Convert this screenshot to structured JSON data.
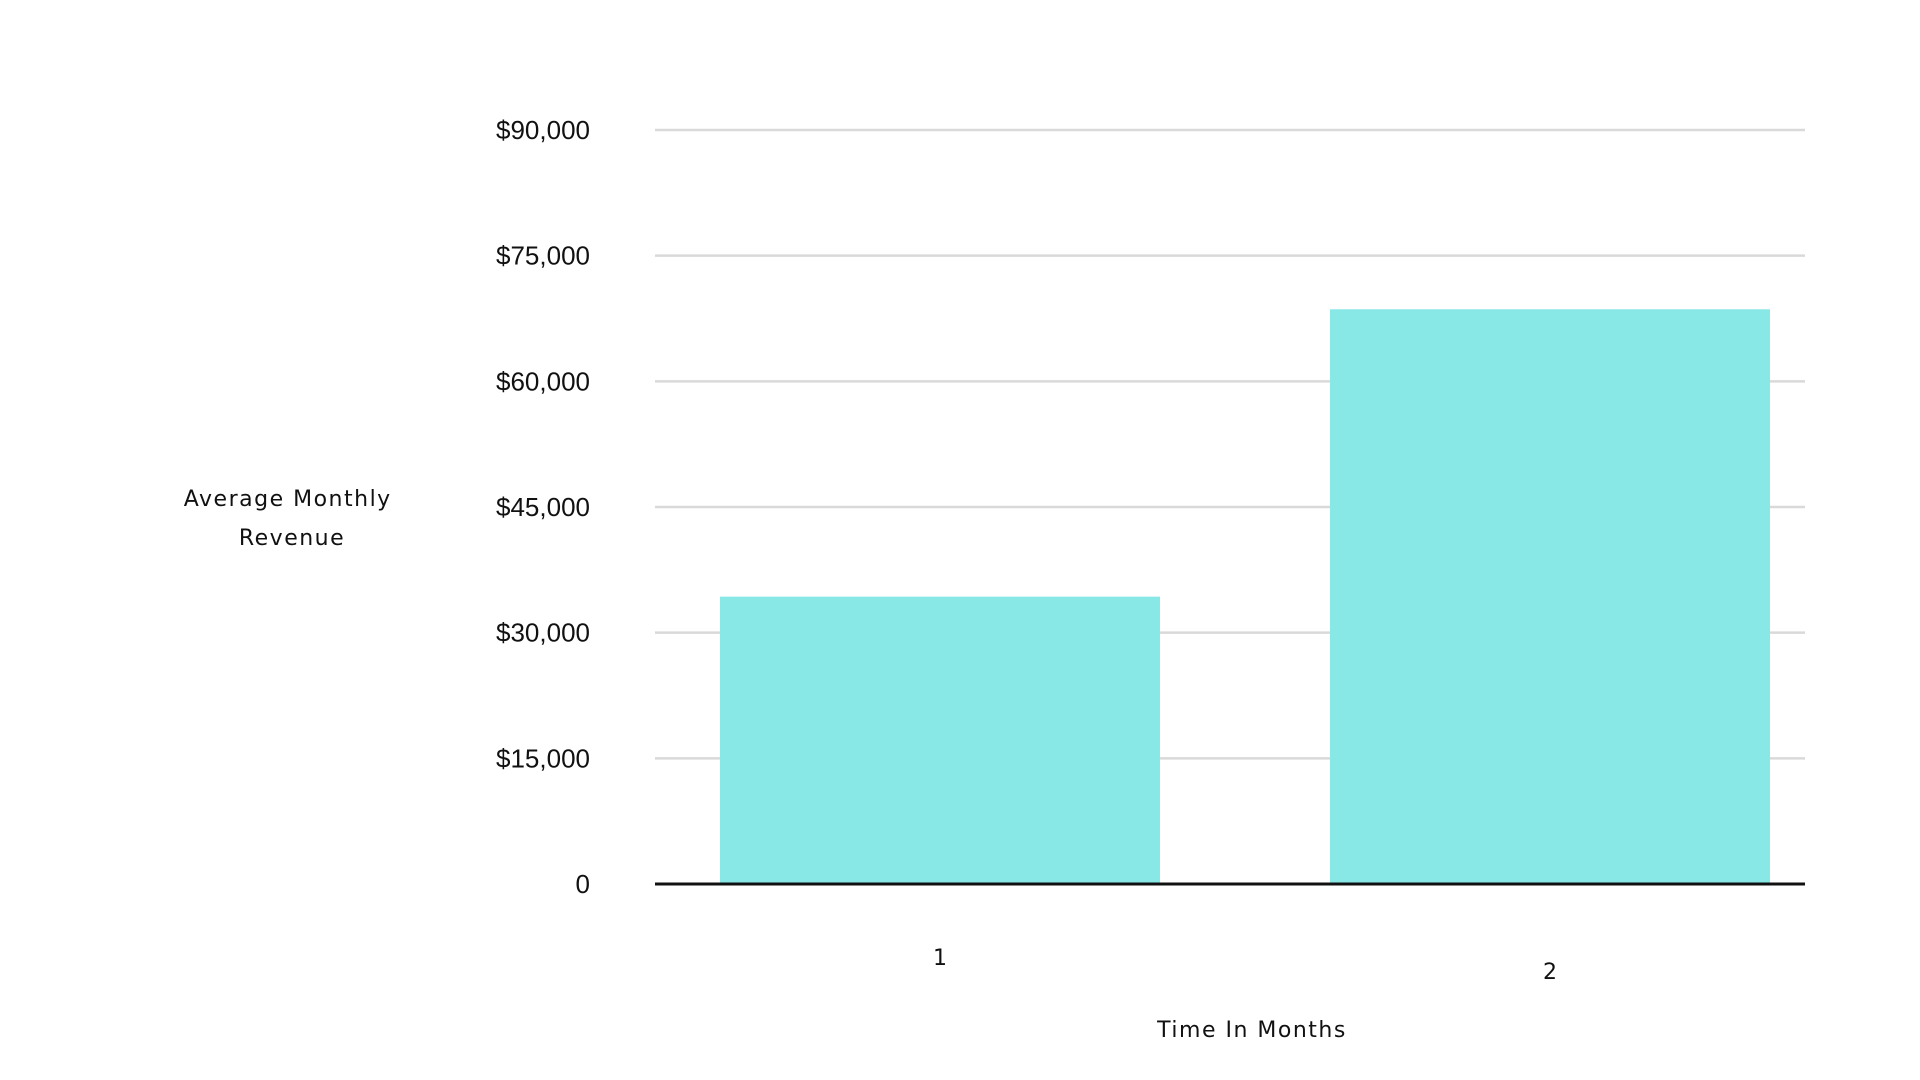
{
  "chart_data": {
    "type": "bar",
    "categories": [
      "1",
      "2"
    ],
    "values": [
      34300,
      68600
    ],
    "title": "",
    "xlabel": "Time In Months",
    "ylabel_lines": [
      "Average Monthly",
      "Revenue"
    ],
    "ylim": [
      0,
      90000
    ],
    "y_ticks": [
      0,
      15000,
      30000,
      45000,
      60000,
      75000,
      90000
    ],
    "y_tick_labels": [
      "0",
      "$15,000",
      "$30,000",
      "$45,000",
      "$60,000",
      "$75,000",
      "$90,000"
    ],
    "grid": true,
    "legend": "none",
    "colors": {
      "bar": "#87E8E6",
      "grid": "#D9D9D9",
      "baseline": "#111111",
      "text": "#111111"
    }
  }
}
